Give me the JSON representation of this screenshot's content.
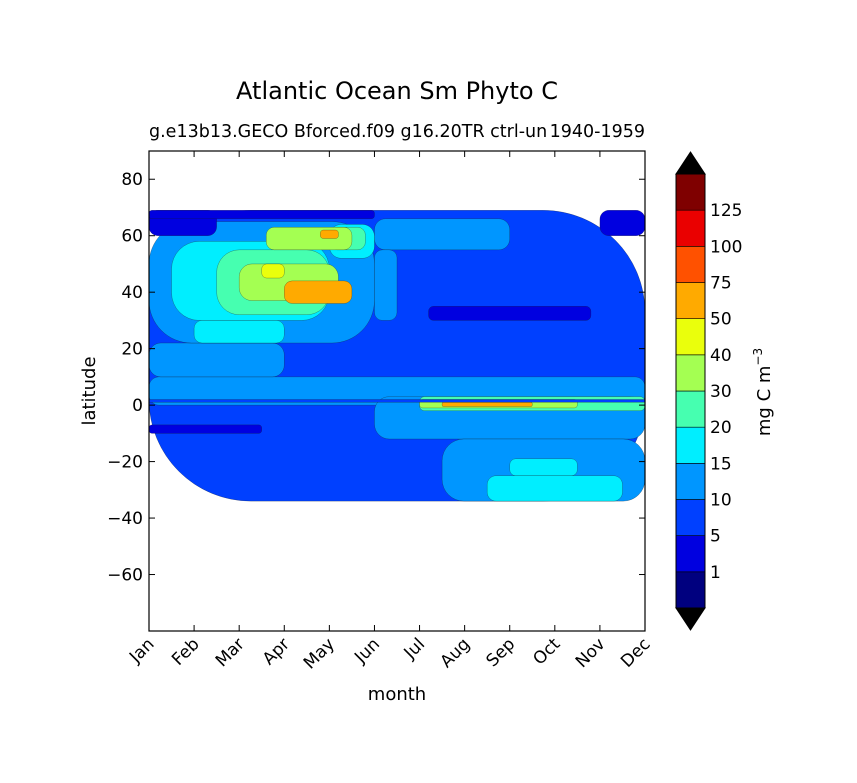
{
  "chart_data": {
    "type": "heatmap",
    "title": "Atlantic Ocean Sm Phyto C",
    "subtitle_left": "g.e13b13.GECO Bforced.f09 g16.20TR ctrl-un",
    "subtitle_right": "1940-1959",
    "xlabel": "month",
    "ylabel": "latitude",
    "x_categories": [
      "Jan",
      "Feb",
      "Mar",
      "Apr",
      "May",
      "Jun",
      "Jul",
      "Aug",
      "Sep",
      "Oct",
      "Nov",
      "Dec"
    ],
    "ylim": [
      -80,
      90
    ],
    "y_ticks": [
      80,
      60,
      40,
      20,
      0,
      -20,
      -40,
      -60
    ],
    "y_tick_labels": [
      "80",
      "60",
      "40",
      "20",
      "0",
      "−20",
      "−40",
      "−60"
    ],
    "data_lat_range": [
      -34,
      69
    ],
    "colorbar": {
      "label": "mg C m",
      "label_exponent": "−3",
      "levels": [
        0,
        1,
        5,
        10,
        15,
        20,
        30,
        40,
        50,
        75,
        100,
        125,
        150
      ],
      "tick_labels": [
        "1",
        "5",
        "10",
        "15",
        "20",
        "30",
        "40",
        "50",
        "75",
        "100",
        "125"
      ],
      "colors": [
        "#00007f",
        "#0000e0",
        "#0040ff",
        "#0096ff",
        "#00eeff",
        "#46ffb0",
        "#a4ff52",
        "#eaff0c",
        "#ffaa00",
        "#ff5100",
        "#ea0000",
        "#7f0000"
      ],
      "extend_color": "#000000"
    },
    "regions": [
      {
        "level": 2,
        "t0": 0.0,
        "t1": 11.0,
        "lat0": -34,
        "lat1": 69
      },
      {
        "level": 3,
        "t0": 0.0,
        "t1": 11.0,
        "lat0": 0,
        "lat1": 10
      },
      {
        "level": 3,
        "t0": 0.0,
        "t1": 3.0,
        "lat0": 10,
        "lat1": 22
      },
      {
        "level": 3,
        "t0": 0.0,
        "t1": 5.0,
        "lat0": 22,
        "lat1": 65
      },
      {
        "level": 3,
        "t0": 5.0,
        "t1": 8.0,
        "lat0": 55,
        "lat1": 66
      },
      {
        "level": 3,
        "t0": 5.0,
        "t1": 5.5,
        "lat0": 30,
        "lat1": 55
      },
      {
        "level": 3,
        "t0": 5.0,
        "t1": 11.0,
        "lat0": -12,
        "lat1": 3
      },
      {
        "level": 3,
        "t0": 6.5,
        "t1": 11.0,
        "lat0": -34,
        "lat1": -12
      },
      {
        "level": 4,
        "t0": 0.5,
        "t1": 4.0,
        "lat0": 30,
        "lat1": 58
      },
      {
        "level": 4,
        "t0": 1.0,
        "t1": 3.0,
        "lat0": 22,
        "lat1": 30
      },
      {
        "level": 4,
        "t0": 4.0,
        "t1": 5.0,
        "lat0": 52,
        "lat1": 64
      },
      {
        "level": 4,
        "t0": 7.5,
        "t1": 10.5,
        "lat0": -34,
        "lat1": -25
      },
      {
        "level": 4,
        "t0": 8.0,
        "t1": 9.5,
        "lat0": -25,
        "lat1": -19
      },
      {
        "level": 5,
        "t0": 1.5,
        "t1": 4.0,
        "lat0": 32,
        "lat1": 55
      },
      {
        "level": 5,
        "t0": 4.0,
        "t1": 4.8,
        "lat0": 55,
        "lat1": 63
      },
      {
        "level": 6,
        "t0": 2.0,
        "t1": 4.2,
        "lat0": 37,
        "lat1": 50
      },
      {
        "level": 6,
        "t0": 2.6,
        "t1": 4.5,
        "lat0": 55,
        "lat1": 63
      },
      {
        "level": 7,
        "t0": 2.5,
        "t1": 3.0,
        "lat0": 45,
        "lat1": 50
      },
      {
        "level": 8,
        "t0": 3.0,
        "t1": 4.5,
        "lat0": 36,
        "lat1": 44
      },
      {
        "level": 8,
        "t0": 3.8,
        "t1": 4.2,
        "lat0": 59,
        "lat1": 62
      },
      {
        "level": 5,
        "t0": 6.0,
        "t1": 11.0,
        "lat0": -2,
        "lat1": 3
      },
      {
        "level": 6,
        "t0": 6.0,
        "t1": 9.5,
        "lat0": -1,
        "lat1": 2
      },
      {
        "level": 8,
        "t0": 6.5,
        "t1": 8.5,
        "lat0": -0.5,
        "lat1": 1
      },
      {
        "level": 1,
        "t0": 0.0,
        "t1": 1.5,
        "lat0": 60,
        "lat1": 69
      },
      {
        "level": 1,
        "t0": 0.0,
        "t1": 5.0,
        "lat0": 66,
        "lat1": 69
      },
      {
        "level": 1,
        "t0": 10.0,
        "t1": 11.0,
        "lat0": 60,
        "lat1": 69
      },
      {
        "level": 1,
        "t0": 6.2,
        "t1": 9.8,
        "lat0": 30,
        "lat1": 35
      },
      {
        "level": 1,
        "t0": 0.0,
        "t1": 2.5,
        "lat0": -10,
        "lat1": -7
      },
      {
        "level": 2,
        "t0": 0.0,
        "t1": 11.0,
        "lat0": 1,
        "lat1": 2
      }
    ]
  }
}
